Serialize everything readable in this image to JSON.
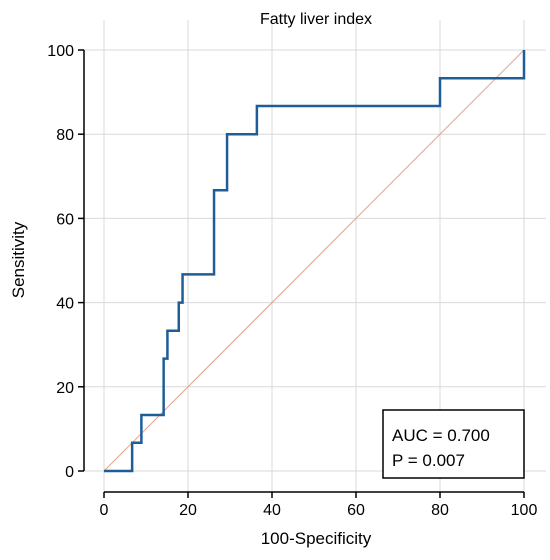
{
  "chart_data": {
    "type": "line",
    "title": "Fatty liver index",
    "xlabel": "100-Specificity",
    "ylabel": "Sensitivity",
    "xlim": [
      0,
      100
    ],
    "ylim": [
      0,
      100
    ],
    "xticks": [
      0,
      20,
      40,
      60,
      80,
      100
    ],
    "yticks": [
      0,
      20,
      40,
      60,
      80,
      100
    ],
    "grid": true,
    "colors": {
      "roc": "#1f5d99",
      "reference": "#e8a08a",
      "grid": "#d9d9d9",
      "axis": "#000000"
    },
    "series": [
      {
        "x": [
          0,
          6.7,
          6.7,
          8.9,
          8.9,
          14.2,
          14.2,
          15.1,
          15.1,
          17.8,
          17.8,
          18.7,
          18.7,
          26.2,
          26.2,
          29.3,
          29.3,
          36.4,
          36.4,
          80,
          80,
          100,
          100
        ],
        "y": [
          0,
          0,
          6.7,
          6.7,
          13.3,
          13.3,
          26.7,
          26.7,
          33.3,
          33.3,
          40,
          40,
          46.7,
          46.7,
          66.7,
          66.7,
          80,
          80,
          86.7,
          86.7,
          93.3,
          93.3,
          100
        ]
      },
      {
        "x": [
          0,
          100
        ],
        "y": [
          0,
          100
        ]
      }
    ],
    "annotations": {
      "auc": "AUC = 0.700",
      "p": "P = 0.007"
    }
  }
}
